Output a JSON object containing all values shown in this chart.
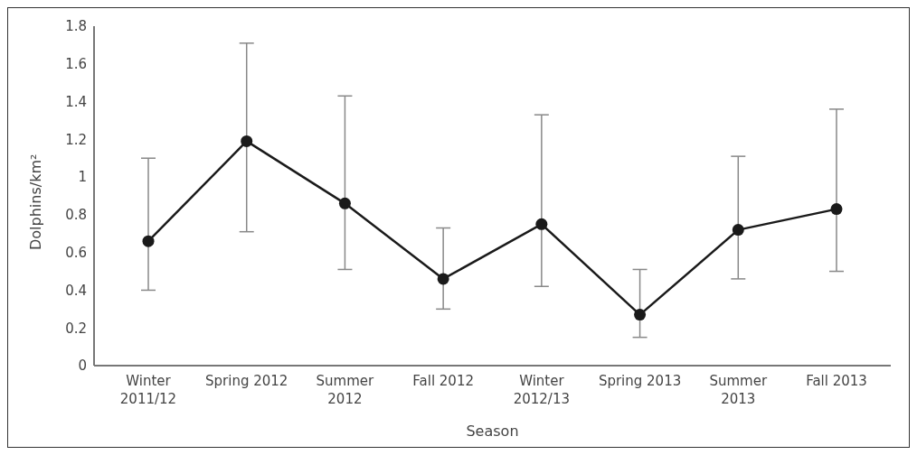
{
  "chart_data": {
    "type": "line",
    "xlabel": "Season",
    "ylabel": "Dolphins/km²",
    "categories": [
      "Winter\n2011/12",
      "Spring 2012",
      "Summer\n2012",
      "Fall 2012",
      "Winter\n2012/13",
      "Spring 2013",
      "Summer\n2013",
      "Fall 2013"
    ],
    "series": [
      {
        "color": "#1a1a1a",
        "values": [
          0.66,
          1.19,
          0.86,
          0.46,
          0.75,
          0.27,
          0.72,
          0.83
        ],
        "errors": [
          [
            0.4,
            1.1
          ],
          [
            0.71,
            1.71
          ],
          [
            0.51,
            1.43
          ],
          [
            0.3,
            0.73
          ],
          [
            0.42,
            1.33
          ],
          [
            0.15,
            0.51
          ],
          [
            0.46,
            1.11
          ],
          [
            0.5,
            1.36
          ]
        ]
      }
    ],
    "ylim": [
      0,
      1.8
    ],
    "yticks": [
      0,
      0.2,
      0.4,
      0.6,
      0.8,
      1,
      1.2,
      1.4,
      1.6,
      1.8
    ],
    "marker": "circle",
    "grid": false,
    "legend": false
  }
}
